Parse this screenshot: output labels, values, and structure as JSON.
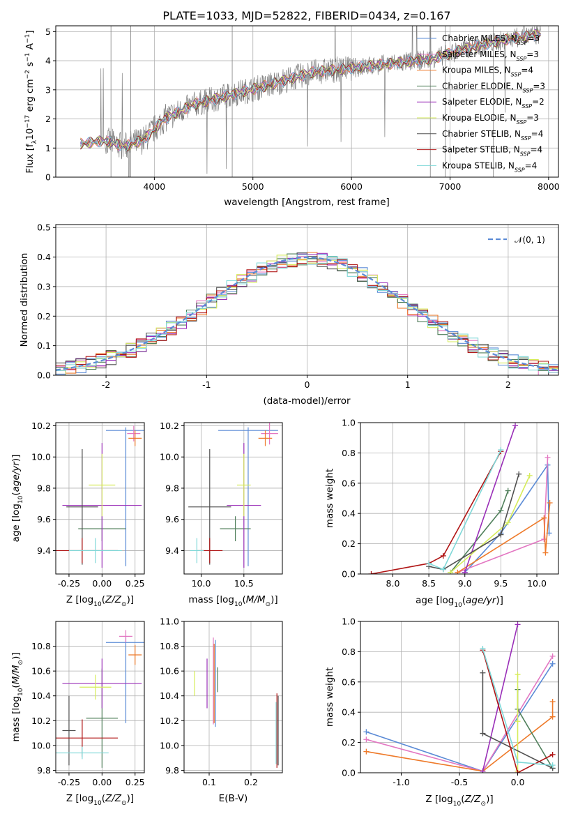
{
  "title": "PLATE=1033, MJD=52822, FIBERID=0434, z=0.167",
  "colors": {
    "Chabrier MILES": "#5b8bd6",
    "Salpeter MILES": "#e377c2",
    "Kroupa MILES": "#ee7a2a",
    "Chabrier ELODIE": "#4f7f5a",
    "Salpeter ELODIE": "#9a2fb8",
    "Kroupa ELODIE": "#d6ec5a",
    "Chabrier STELIB": "#505050",
    "Salpeter STELIB": "#b01515",
    "Kroupa STELIB": "#7fd8d8",
    "data": "#808080",
    "gauss": "#5b8bd6"
  },
  "legend_entries": [
    {
      "model": "Chabrier MILES",
      "nssp": "3"
    },
    {
      "model": "Salpeter MILES",
      "nssp": "3"
    },
    {
      "model": "Kroupa MILES",
      "nssp": "4"
    },
    {
      "model": "Chabrier ELODIE",
      "nssp": "3"
    },
    {
      "model": "Salpeter ELODIE",
      "nssp": "2"
    },
    {
      "model": "Kroupa ELODIE",
      "nssp": "3"
    },
    {
      "model": "Chabrier STELIB",
      "nssp": "4"
    },
    {
      "model": "Salpeter STELIB",
      "nssp": "4"
    },
    {
      "model": "Kroupa STELIB",
      "nssp": "4"
    }
  ],
  "nssp_label": "N",
  "nssp_sub": "SSP",
  "gauss_label": "𝒩(0, 1)",
  "chart_data": [
    {
      "type": "line",
      "title": "PLATE=1033, MJD=52822, FIBERID=0434, z=0.167",
      "xlabel": "wavelength [Angstrom, rest frame]",
      "ylabel": "Flux [f_λ 10^-17 erg cm^-2 s^-1 A^-1]",
      "xlim": [
        3000,
        8100
      ],
      "ylim": [
        0,
        5.2
      ],
      "xticks": [
        4000,
        5000,
        6000,
        7000,
        8000
      ],
      "yticks": [
        0,
        1,
        2,
        3,
        4,
        5
      ],
      "spectrum_trend": {
        "wavelength": [
          3250,
          3500,
          3700,
          3900,
          4100,
          4400,
          4800,
          5200,
          5600,
          6000,
          6400,
          6800,
          7200,
          7600,
          7900
        ],
        "flux": [
          1.15,
          1.25,
          1.05,
          1.3,
          2.0,
          2.5,
          2.85,
          3.2,
          3.6,
          3.75,
          3.9,
          4.05,
          4.45,
          4.75,
          4.9
        ]
      }
    },
    {
      "type": "line",
      "xlabel": "(data-model)/error",
      "ylabel": "Normed distribution",
      "xlim": [
        -2.5,
        2.5
      ],
      "ylim": [
        0,
        0.51
      ],
      "xticks": [
        -2,
        -1,
        0,
        1,
        2
      ],
      "yticks": [
        0.0,
        0.1,
        0.2,
        0.3,
        0.4,
        0.5
      ],
      "series": [
        {
          "name": "𝒩(0, 1)",
          "distribution": "normal",
          "mean": 0,
          "sigma": 1
        }
      ],
      "histograms": {
        "bins": [
          -2.5,
          -2.4,
          -2.3,
          -2.2,
          -2.1,
          -2.0,
          -1.9,
          -1.8,
          -1.7,
          -1.6,
          -1.5,
          -1.4,
          -1.3,
          -1.2,
          -1.1,
          -1.0,
          -0.9,
          -0.8,
          -0.7,
          -0.6,
          -0.5,
          -0.4,
          -0.3,
          -0.2,
          -0.1,
          0.0,
          0.1,
          0.2,
          0.3,
          0.4,
          0.5,
          0.6,
          0.7,
          0.8,
          0.9,
          1.0,
          1.1,
          1.2,
          1.3,
          1.4,
          1.5,
          1.6,
          1.7,
          1.8,
          1.9,
          2.0,
          2.1,
          2.2,
          2.3,
          2.4,
          2.5
        ]
      }
    },
    {
      "type": "scatter",
      "xlabel": "Z [log10(Z/Z⊙)]",
      "ylabel": "age  [log10(age/yr)]",
      "xlim": [
        -0.35,
        0.32
      ],
      "ylim": [
        9.25,
        10.22
      ],
      "xticks": [
        -0.25,
        0.0,
        0.25
      ],
      "yticks": [
        9.4,
        9.6,
        9.8,
        10.0,
        10.2
      ],
      "points": [
        {
          "model": "Chabrier MILES",
          "x": 0.18,
          "xerr": 0.15,
          "y": 10.17,
          "yerr": 0.02,
          "yerr_lo": 0.87
        },
        {
          "model": "Salpeter MILES",
          "x": 0.24,
          "xerr": 0.05,
          "y": 10.15,
          "yerr": 0.05
        },
        {
          "model": "Kroupa MILES",
          "x": 0.25,
          "xerr": 0.05,
          "y": 10.12,
          "yerr": 0.05
        },
        {
          "model": "Chabrier ELODIE",
          "x": 0.0,
          "xerr": 0.18,
          "y": 9.54,
          "yerr": 0.08
        },
        {
          "model": "Salpeter ELODIE",
          "x": 0.0,
          "xerr": 0.3,
          "y": 9.69,
          "yerr": 0.4
        },
        {
          "model": "Kroupa ELODIE",
          "x": 0.0,
          "xerr": 0.1,
          "y": 9.82,
          "yerr": 0.2
        },
        {
          "model": "Chabrier STELIB",
          "x": -0.15,
          "xerr": 0.12,
          "y": 9.68,
          "yerr": 0.37
        },
        {
          "model": "Salpeter STELIB",
          "x": -0.15,
          "xerr": 0.27,
          "y": 9.4,
          "yerr": 0.08
        },
        {
          "model": "Kroupa STELIB",
          "x": -0.05,
          "xerr": 0.2,
          "y": 9.4,
          "yerr": 0.08
        }
      ]
    },
    {
      "type": "scatter",
      "xlabel": "mass [log10(M/M⊙)]",
      "xlim": [
        9.8,
        10.95
      ],
      "ylim": [
        9.25,
        10.22
      ],
      "xticks": [
        10.0,
        10.5
      ],
      "yticks": [
        9.4,
        9.6,
        9.8,
        10.0,
        10.2
      ],
      "points": [
        {
          "model": "Chabrier MILES",
          "x": 10.55,
          "xerr": 0.35,
          "y": 10.17,
          "yerr": 0.02,
          "yerr_lo": 0.87
        },
        {
          "model": "Salpeter MILES",
          "x": 10.8,
          "xerr": 0.1,
          "y": 10.15,
          "yerr": 0.07
        },
        {
          "model": "Kroupa MILES",
          "x": 10.75,
          "xerr": 0.08,
          "y": 10.12,
          "yerr": 0.05
        },
        {
          "model": "Chabrier ELODIE",
          "x": 10.4,
          "xerr": 0.18,
          "y": 9.54,
          "yerr": 0.08
        },
        {
          "model": "Salpeter ELODIE",
          "x": 10.5,
          "xerr": 0.2,
          "y": 9.69,
          "yerr": 0.4
        },
        {
          "model": "Kroupa ELODIE",
          "x": 10.5,
          "xerr": 0.08,
          "y": 9.82,
          "yerr": 0.2
        },
        {
          "model": "Chabrier STELIB",
          "x": 10.1,
          "xerr": 0.25,
          "y": 9.68,
          "yerr": 0.37
        },
        {
          "model": "Salpeter STELIB",
          "x": 10.1,
          "xerr": 0.15,
          "y": 9.4,
          "yerr": 0.08
        },
        {
          "model": "Kroupa STELIB",
          "x": 9.95,
          "xerr": 0.08,
          "y": 9.4,
          "yerr": 0.08
        }
      ]
    },
    {
      "type": "line",
      "xlabel": "age  [log10(age/yr)]",
      "ylabel": "mass weight",
      "xlim": [
        7.55,
        10.3
      ],
      "ylim": [
        0,
        1
      ],
      "xticks": [
        8.0,
        8.5,
        9.0,
        9.5,
        10.0
      ],
      "yticks": [
        0.0,
        0.2,
        0.4,
        0.6,
        0.8,
        1.0
      ],
      "series": [
        {
          "model": "Chabrier MILES",
          "x": [
            9.0,
            9.5,
            10.15,
            10.17
          ],
          "y": [
            0.01,
            0.27,
            0.72,
            0.27
          ]
        },
        {
          "model": "Salpeter MILES",
          "x": [
            8.9,
            10.1,
            10.15
          ],
          "y": [
            0.01,
            0.23,
            0.77
          ]
        },
        {
          "model": "Kroupa MILES",
          "x": [
            8.9,
            10.1,
            10.12,
            10.18
          ],
          "y": [
            0.01,
            0.37,
            0.14,
            0.47
          ]
        },
        {
          "model": "Chabrier ELODIE",
          "x": [
            8.8,
            9.5,
            9.6
          ],
          "y": [
            0.01,
            0.42,
            0.55
          ]
        },
        {
          "model": "Salpeter ELODIE",
          "x": [
            9.0,
            9.7
          ],
          "y": [
            0.01,
            0.98
          ]
        },
        {
          "model": "Kroupa ELODIE",
          "x": [
            8.8,
            9.6,
            9.9
          ],
          "y": [
            0.01,
            0.34,
            0.65
          ]
        },
        {
          "model": "Chabrier STELIB",
          "x": [
            8.5,
            8.7,
            9.5,
            9.75
          ],
          "y": [
            0.05,
            0.03,
            0.26,
            0.66
          ]
        },
        {
          "model": "Salpeter STELIB",
          "x": [
            7.7,
            8.5,
            8.7,
            9.5
          ],
          "y": [
            0.0,
            0.07,
            0.12,
            0.81
          ]
        },
        {
          "model": "Kroupa STELIB",
          "x": [
            8.5,
            8.7,
            9.5
          ],
          "y": [
            0.07,
            0.03,
            0.82
          ]
        }
      ]
    },
    {
      "type": "scatter",
      "xlabel": "Z [log10(Z/Z⊙)]",
      "ylabel": "mass [log10(M/M⊙)]",
      "xlim": [
        -0.35,
        0.32
      ],
      "ylim": [
        9.78,
        11.0
      ],
      "xticks": [
        -0.25,
        0.0,
        0.25
      ],
      "yticks": [
        9.8,
        10.0,
        10.2,
        10.4,
        10.6,
        10.8
      ],
      "points": [
        {
          "model": "Chabrier MILES",
          "x": 0.18,
          "xerr": 0.15,
          "y": 10.83,
          "yerr": 0.05,
          "yerr_lo": 0.65
        },
        {
          "model": "Salpeter MILES",
          "x": 0.18,
          "xerr": 0.05,
          "y": 10.88,
          "yerr": 0.05
        },
        {
          "model": "Kroupa MILES",
          "x": 0.25,
          "xerr": 0.05,
          "y": 10.73,
          "yerr": 0.08
        },
        {
          "model": "Chabrier ELODIE",
          "x": 0.0,
          "xerr": 0.12,
          "y": 10.22,
          "yerr": 0.4
        },
        {
          "model": "Salpeter ELODIE",
          "x": 0.0,
          "xerr": 0.3,
          "y": 10.5,
          "yerr": 0.2
        },
        {
          "model": "Kroupa ELODIE",
          "x": -0.05,
          "xerr": 0.12,
          "y": 10.47,
          "yerr": 0.1
        },
        {
          "model": "Chabrier STELIB",
          "x": -0.25,
          "xerr": 0.05,
          "y": 10.12,
          "yerr": 0.28
        },
        {
          "model": "Salpeter STELIB",
          "x": -0.15,
          "xerr": 0.27,
          "y": 10.06,
          "yerr": 0.15
        },
        {
          "model": "Kroupa STELIB",
          "x": -0.15,
          "xerr": 0.2,
          "y": 9.94,
          "yerr": 0.05
        }
      ]
    },
    {
      "type": "scatter",
      "xlabel": "E(B-V)",
      "xlim": [
        0.04,
        0.275
      ],
      "ylim": [
        9.78,
        11.0
      ],
      "xticks": [
        0.1,
        0.2
      ],
      "yticks": [
        9.8,
        10.0,
        10.2,
        10.4,
        10.6,
        10.8,
        11.0
      ],
      "points": [
        {
          "model": "Chabrier MILES",
          "x": 0.115,
          "y": 10.5,
          "yerr": 0.35
        },
        {
          "model": "Salpeter MILES",
          "x": 0.11,
          "y": 10.52,
          "yerr": 0.35
        },
        {
          "model": "Kroupa MILES",
          "x": 0.112,
          "y": 10.5,
          "yerr": 0.32
        },
        {
          "model": "Chabrier ELODIE",
          "x": 0.12,
          "y": 10.53,
          "yerr": 0.1
        },
        {
          "model": "Salpeter ELODIE",
          "x": 0.095,
          "y": 10.5,
          "yerr": 0.2
        },
        {
          "model": "Kroupa ELODIE",
          "x": 0.065,
          "y": 10.5,
          "yerr": 0.1
        },
        {
          "model": "Chabrier STELIB",
          "x": 0.265,
          "y": 10.12,
          "yerr": 0.28
        },
        {
          "model": "Salpeter STELIB",
          "x": 0.262,
          "y": 10.12,
          "yerr": 0.3
        },
        {
          "model": "Kroupa STELIB",
          "x": 0.26,
          "y": 10.1,
          "yerr": 0.25
        }
      ]
    },
    {
      "type": "line",
      "xlabel": "Z [log10(Z/Z⊙)]",
      "ylabel": "mass weight",
      "xlim": [
        -1.35,
        0.35
      ],
      "ylim": [
        0,
        1
      ],
      "xticks": [
        -1.0,
        -0.5,
        0.0
      ],
      "yticks": [
        0.0,
        0.2,
        0.4,
        0.6,
        0.8,
        1.0
      ],
      "series": [
        {
          "model": "Chabrier MILES",
          "x": [
            -1.3,
            -0.3,
            0.3
          ],
          "y": [
            0.27,
            0.01,
            0.72
          ]
        },
        {
          "model": "Salpeter MILES",
          "x": [
            -1.3,
            -0.3,
            0.3
          ],
          "y": [
            0.22,
            0.01,
            0.77
          ]
        },
        {
          "model": "Kroupa MILES",
          "x": [
            -1.3,
            -0.3,
            0.3,
            0.3
          ],
          "y": [
            0.14,
            0.01,
            0.37,
            0.47
          ]
        },
        {
          "model": "Chabrier ELODIE",
          "x": [
            0.0,
            0.0,
            0.3
          ],
          "y": [
            0.55,
            0.42,
            0.03
          ]
        },
        {
          "model": "Salpeter ELODIE",
          "x": [
            -0.3,
            0.0
          ],
          "y": [
            0.01,
            0.98
          ]
        },
        {
          "model": "Kroupa ELODIE",
          "x": [
            0.0,
            0.0,
            0.0
          ],
          "y": [
            0.65,
            0.34,
            0.01
          ]
        },
        {
          "model": "Chabrier STELIB",
          "x": [
            -0.3,
            -0.3,
            0.3
          ],
          "y": [
            0.66,
            0.26,
            0.03
          ]
        },
        {
          "model": "Salpeter STELIB",
          "x": [
            -0.3,
            0.0,
            0.3
          ],
          "y": [
            0.81,
            0.0,
            0.12
          ]
        },
        {
          "model": "Kroupa STELIB",
          "x": [
            -0.3,
            0.0,
            0.3
          ],
          "y": [
            0.82,
            0.07,
            0.05
          ]
        }
      ]
    }
  ]
}
